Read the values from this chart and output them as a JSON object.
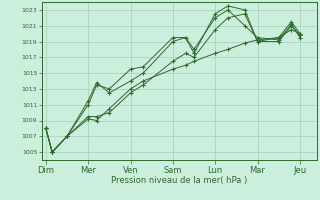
{
  "background_color": "#cceedd",
  "grid_color": "#aaccbb",
  "line_color": "#2d6a2d",
  "marker": "+",
  "xlabel": "Pression niveau de la mer( hPa )",
  "ylim": [
    1004,
    1024
  ],
  "yticks": [
    1005,
    1007,
    1009,
    1011,
    1013,
    1015,
    1017,
    1019,
    1021,
    1023
  ],
  "xtick_labels": [
    "Dim",
    "Mer",
    "Ven",
    "Sam",
    "Lun",
    "Mar",
    "Jeu"
  ],
  "xtick_positions": [
    0,
    1,
    2,
    3,
    4,
    5,
    6
  ],
  "series": [
    [
      1008.0,
      1005.0,
      1007.0,
      1011.0,
      1013.5,
      1013.0,
      1015.5,
      1015.8,
      1019.5,
      1019.5,
      1017.5,
      1022.5,
      1023.5,
      1023.0,
      1019.0,
      1019.0,
      1021.0,
      1019.8
    ],
    [
      1008.0,
      1005.0,
      1007.0,
      1011.5,
      1013.8,
      1012.5,
      1014.0,
      1015.0,
      1019.0,
      1019.5,
      1018.0,
      1022.0,
      1023.0,
      1021.0,
      1019.5,
      1019.2,
      1021.2,
      1019.5
    ],
    [
      1008.0,
      1005.0,
      1007.0,
      1009.5,
      1009.5,
      1010.0,
      1012.5,
      1013.5,
      1016.5,
      1017.5,
      1017.0,
      1020.5,
      1022.0,
      1022.5,
      1019.0,
      1019.5,
      1021.5,
      1020.0
    ],
    [
      1008.0,
      1005.0,
      1007.0,
      1009.2,
      1009.0,
      1010.5,
      1013.0,
      1014.0,
      1015.5,
      1016.0,
      1016.5,
      1017.5,
      1018.0,
      1018.8,
      1019.2,
      1019.5,
      1020.5,
      1020.0
    ]
  ],
  "x_positions": [
    0.0,
    0.15,
    0.5,
    1.0,
    1.2,
    1.5,
    2.0,
    2.3,
    3.0,
    3.3,
    3.5,
    4.0,
    4.3,
    4.7,
    5.0,
    5.5,
    5.8,
    6.0
  ],
  "xlim": [
    -0.1,
    6.4
  ],
  "ylabel_fontsize": 4.5,
  "xlabel_fontsize": 6,
  "linewidth": 0.7,
  "markersize": 3,
  "markeredgewidth": 0.8
}
